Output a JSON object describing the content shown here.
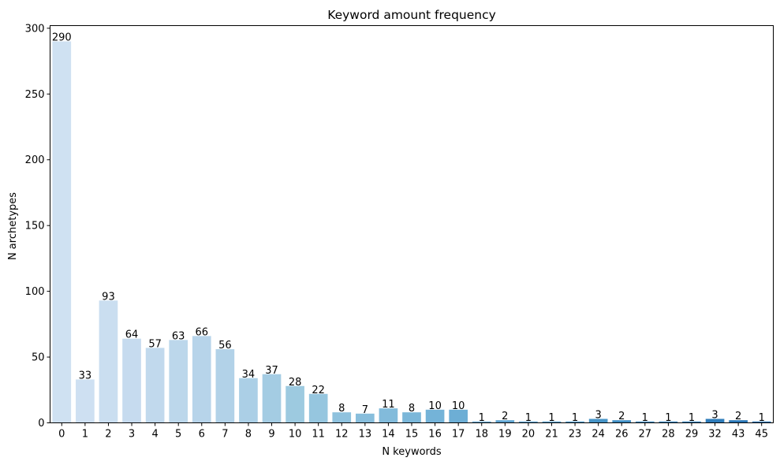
{
  "chart_data": {
    "type": "bar",
    "title": "Keyword amount frequency",
    "xlabel": "N keywords",
    "ylabel": "N archetypes",
    "categories": [
      "0",
      "1",
      "2",
      "3",
      "4",
      "5",
      "6",
      "7",
      "8",
      "9",
      "10",
      "11",
      "12",
      "13",
      "14",
      "15",
      "16",
      "17",
      "18",
      "19",
      "20",
      "21",
      "23",
      "24",
      "26",
      "27",
      "28",
      "29",
      "32",
      "43",
      "45"
    ],
    "values": [
      290,
      33,
      93,
      64,
      57,
      63,
      66,
      56,
      34,
      37,
      28,
      22,
      8,
      7,
      11,
      8,
      10,
      10,
      1,
      2,
      1,
      1,
      1,
      3,
      2,
      1,
      1,
      1,
      3,
      2,
      1
    ],
    "data_labels": [
      "290",
      "33",
      "93",
      "64",
      "57",
      "63",
      "66",
      "56",
      "34",
      "37",
      "28",
      "22",
      "8",
      "7",
      "11",
      "8",
      "10",
      "10",
      "1",
      "2",
      "1",
      "1",
      "1",
      "3",
      "2",
      "1",
      "1",
      "1",
      "3",
      "2",
      "1"
    ],
    "ylim": [
      0,
      302
    ],
    "yticks": [
      0,
      50,
      100,
      150,
      200,
      250,
      300
    ],
    "ytick_labels": [
      "0",
      "50",
      "100",
      "150",
      "200",
      "250",
      "300"
    ],
    "grid": false,
    "palette": "Blues",
    "colors": [
      "#cfe1f2",
      "#cee0f2",
      "#cadef0",
      "#c6dbef",
      "#c1d9ed",
      "#bcd7eb",
      "#b7d4ea",
      "#b2d2e8",
      "#abcfe6",
      "#a4cce3",
      "#9dcae0",
      "#96c6df",
      "#8fc2de",
      "#88bedc",
      "#82bbdb",
      "#7bb7d9",
      "#74b3d8",
      "#6daed5",
      "#66aad4",
      "#60a5d1",
      "#59a1cf",
      "#529dcc",
      "#4b98ca",
      "#4694c7",
      "#418fc4",
      "#3c8ac2",
      "#3686c0",
      "#3181bd",
      "#2e7cba",
      "#2b78b7",
      "#2873b3"
    ]
  }
}
